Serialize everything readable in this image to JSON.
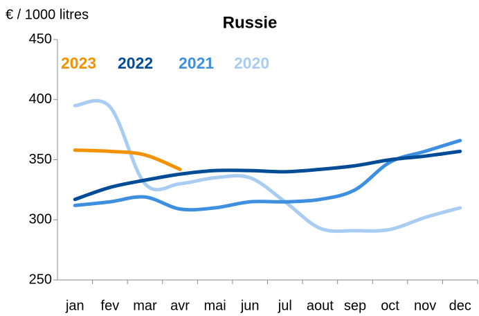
{
  "chart_data": {
    "type": "line",
    "title": "Russie",
    "y_label": "€ / 1000 litres",
    "categories": [
      "jan",
      "fev",
      "mar",
      "avr",
      "mai",
      "jun",
      "jul",
      "aout",
      "sep",
      "oct",
      "nov",
      "dec"
    ],
    "series": [
      {
        "name": "2023",
        "color": "#f39200",
        "values": [
          358,
          357,
          354,
          342,
          null,
          null,
          null,
          null,
          null,
          null,
          null,
          null
        ]
      },
      {
        "name": "2022",
        "color": "#004c97",
        "values": [
          317,
          327,
          333,
          338,
          341,
          341,
          340,
          342,
          345,
          350,
          353,
          357
        ]
      },
      {
        "name": "2021",
        "color": "#3f8fe0",
        "values": [
          312,
          315,
          319,
          309,
          310,
          315,
          315,
          317,
          325,
          348,
          357,
          366
        ]
      },
      {
        "name": "2020",
        "color": "#a9cdf2",
        "values": [
          395,
          394,
          330,
          330,
          335,
          335,
          315,
          293,
          291,
          292,
          302,
          310
        ]
      }
    ],
    "ylim": [
      250,
      450
    ],
    "yticks": [
      250,
      300,
      350,
      400,
      450
    ],
    "grid": false
  }
}
